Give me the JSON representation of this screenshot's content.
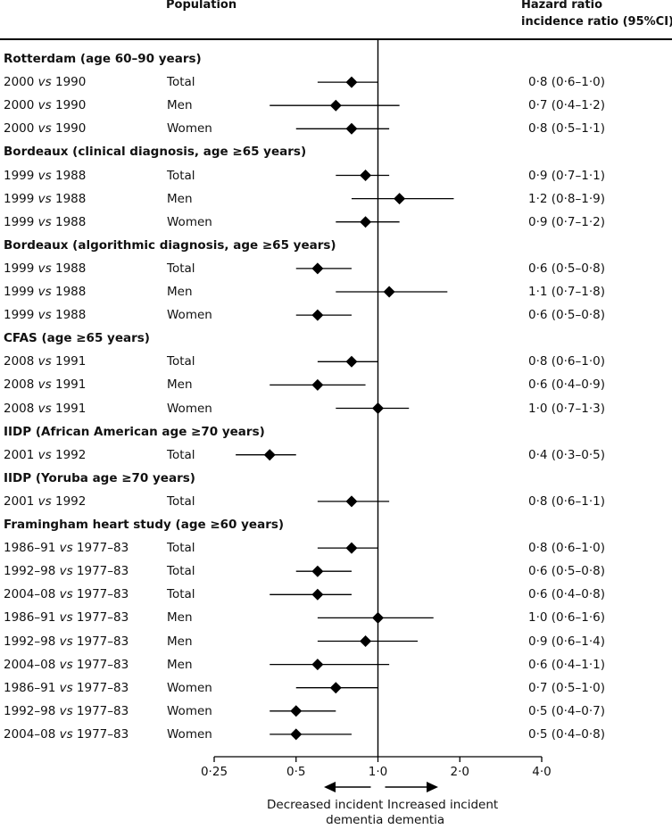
{
  "header": {
    "population": "Population",
    "hr_line1": "Hazard ratio",
    "hr_line2": "incidence ratio (95%CI)"
  },
  "chart_data": {
    "type": "forest",
    "x_scale": "log2",
    "xlim": [
      0.25,
      4.0
    ],
    "x_ticks": [
      0.25,
      0.5,
      1.0,
      2.0,
      4.0
    ],
    "x_tick_labels": [
      "0·25",
      "0·5",
      "1·0",
      "2·0",
      "4·0"
    ],
    "reference_line": 1.0,
    "annotations": {
      "left_arrow": [
        "Decreased incident",
        "dementia"
      ],
      "right_arrow": [
        "Increased incident",
        "dementia"
      ]
    },
    "groups": [
      {
        "title": "Rotterdam (age 60–90 years)",
        "rows": [
          {
            "comparison": "2000 vs 1990",
            "sex": "Total",
            "estimate": 0.8,
            "lower": 0.6,
            "upper": 1.0,
            "ci_text": "0·8 (0·6–1·0)"
          },
          {
            "comparison": "2000 vs 1990",
            "sex": "Men",
            "estimate": 0.7,
            "lower": 0.4,
            "upper": 1.2,
            "ci_text": "0·7 (0·4–1·2)"
          },
          {
            "comparison": "2000 vs 1990",
            "sex": "Women",
            "estimate": 0.8,
            "lower": 0.5,
            "upper": 1.1,
            "ci_text": "0·8 (0·5–1·1)"
          }
        ]
      },
      {
        "title": "Bordeaux (clinical diagnosis, age ≥65 years)",
        "rows": [
          {
            "comparison": "1999 vs 1988",
            "sex": "Total",
            "estimate": 0.9,
            "lower": 0.7,
            "upper": 1.1,
            "ci_text": "0·9 (0·7–1·1)"
          },
          {
            "comparison": "1999 vs 1988",
            "sex": "Men",
            "estimate": 1.2,
            "lower": 0.8,
            "upper": 1.9,
            "ci_text": "1·2 (0·8–1·9)"
          },
          {
            "comparison": "1999 vs 1988",
            "sex": "Women",
            "estimate": 0.9,
            "lower": 0.7,
            "upper": 1.2,
            "ci_text": "0·9 (0·7–1·2)"
          }
        ]
      },
      {
        "title": "Bordeaux (algorithmic diagnosis, age ≥65 years)",
        "rows": [
          {
            "comparison": "1999 vs 1988",
            "sex": "Total",
            "estimate": 0.6,
            "lower": 0.5,
            "upper": 0.8,
            "ci_text": "0·6 (0·5–0·8)"
          },
          {
            "comparison": "1999 vs 1988",
            "sex": "Men",
            "estimate": 1.1,
            "lower": 0.7,
            "upper": 1.8,
            "ci_text": "1·1 (0·7–1·8)"
          },
          {
            "comparison": "1999 vs 1988",
            "sex": "Women",
            "estimate": 0.6,
            "lower": 0.5,
            "upper": 0.8,
            "ci_text": "0·6 (0·5–0·8)"
          }
        ]
      },
      {
        "title": "CFAS (age ≥65 years)",
        "rows": [
          {
            "comparison": "2008 vs 1991",
            "sex": "Total",
            "estimate": 0.8,
            "lower": 0.6,
            "upper": 1.0,
            "ci_text": "0·8 (0·6–1·0)"
          },
          {
            "comparison": "2008 vs 1991",
            "sex": "Men",
            "estimate": 0.6,
            "lower": 0.4,
            "upper": 0.9,
            "ci_text": "0·6 (0·4–0·9)"
          },
          {
            "comparison": "2008 vs 1991",
            "sex": "Women",
            "estimate": 1.0,
            "lower": 0.7,
            "upper": 1.3,
            "ci_text": "1·0 (0·7–1·3)"
          }
        ]
      },
      {
        "title": "IIDP (African American age ≥70 years)",
        "rows": [
          {
            "comparison": "2001 vs 1992",
            "sex": "Total",
            "estimate": 0.4,
            "lower": 0.3,
            "upper": 0.5,
            "ci_text": "0·4 (0·3–0·5)"
          }
        ]
      },
      {
        "title": "IIDP (Yoruba age ≥70 years)",
        "rows": [
          {
            "comparison": "2001 vs 1992",
            "sex": "Total",
            "estimate": 0.8,
            "lower": 0.6,
            "upper": 1.1,
            "ci_text": "0·8 (0·6–1·1)"
          }
        ]
      },
      {
        "title": "Framingham heart study (age ≥60 years)",
        "rows": [
          {
            "comparison": "1986–91 vs 1977–83",
            "sex": "Total",
            "estimate": 0.8,
            "lower": 0.6,
            "upper": 1.0,
            "ci_text": "0·8 (0·6–1·0)"
          },
          {
            "comparison": "1992–98 vs 1977–83",
            "sex": "Total",
            "estimate": 0.6,
            "lower": 0.5,
            "upper": 0.8,
            "ci_text": "0·6 (0·5–0·8)"
          },
          {
            "comparison": "2004–08 vs 1977–83",
            "sex": "Total",
            "estimate": 0.6,
            "lower": 0.4,
            "upper": 0.8,
            "ci_text": "0·6 (0·4–0·8)"
          },
          {
            "comparison": "1986–91 vs 1977–83",
            "sex": "Men",
            "estimate": 1.0,
            "lower": 0.6,
            "upper": 1.6,
            "ci_text": "1·0 (0·6–1·6)"
          },
          {
            "comparison": "1992–98 vs 1977–83",
            "sex": "Men",
            "estimate": 0.9,
            "lower": 0.6,
            "upper": 1.4,
            "ci_text": "0·9 (0·6–1·4)"
          },
          {
            "comparison": "2004–08 vs 1977–83",
            "sex": "Men",
            "estimate": 0.6,
            "lower": 0.4,
            "upper": 1.1,
            "ci_text": "0·6 (0·4–1·1)"
          },
          {
            "comparison": "1986–91 vs 1977–83",
            "sex": "Women",
            "estimate": 0.7,
            "lower": 0.5,
            "upper": 1.0,
            "ci_text": "0·7 (0·5–1·0)"
          },
          {
            "comparison": "1992–98 vs 1977–83",
            "sex": "Women",
            "estimate": 0.5,
            "lower": 0.4,
            "upper": 0.7,
            "ci_text": "0·5 (0·4–0·7)"
          },
          {
            "comparison": "2004–08 vs 1977–83",
            "sex": "Women",
            "estimate": 0.5,
            "lower": 0.4,
            "upper": 0.8,
            "ci_text": "0·5 (0·4–0·8)"
          }
        ]
      }
    ]
  }
}
